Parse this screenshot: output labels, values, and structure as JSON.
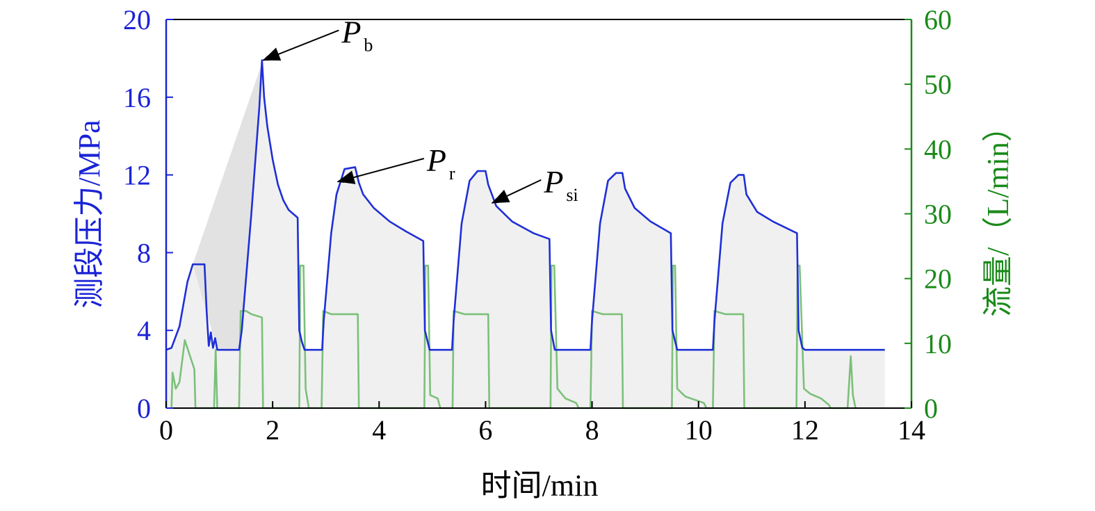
{
  "chart_data": {
    "type": "line",
    "xlabel": "时间/min",
    "ylabel_left": "测段压力/MPa",
    "ylabel_right": "流量/（L/min）",
    "xlim": [
      0,
      14
    ],
    "ylim_left": [
      0,
      20
    ],
    "ylim_right": [
      0,
      60
    ],
    "xticks": [
      "0",
      "2",
      "4",
      "6",
      "8",
      "10",
      "12",
      "14"
    ],
    "yticks_left": [
      "0",
      "4",
      "8",
      "12",
      "16",
      "20"
    ],
    "yticks_right": [
      "0",
      "10",
      "20",
      "30",
      "40",
      "50",
      "60"
    ],
    "colors": {
      "pressure": "#1f2fd6",
      "flow": "#7cc07a",
      "fill": "#f0f0f0",
      "left_axis": "#1a23d6",
      "right_axis": "#1a8a1a",
      "axis": "#000000"
    },
    "series": [
      {
        "name": "测段压力",
        "axis": "left",
        "points": [
          [
            0,
            3.0
          ],
          [
            0.1,
            3.1
          ],
          [
            0.25,
            4.2
          ],
          [
            0.4,
            6.5
          ],
          [
            0.5,
            7.4
          ],
          [
            0.72,
            7.4
          ],
          [
            0.76,
            5.0
          ],
          [
            0.8,
            3.2
          ],
          [
            0.84,
            3.9
          ],
          [
            0.88,
            3.1
          ],
          [
            0.92,
            3.6
          ],
          [
            0.96,
            3.0
          ],
          [
            1.37,
            3.0
          ],
          [
            1.42,
            4.0
          ],
          [
            1.6,
            10.0
          ],
          [
            1.75,
            15.5
          ],
          [
            1.8,
            17.9
          ],
          [
            1.84,
            16.0
          ],
          [
            1.9,
            14.5
          ],
          [
            2.0,
            12.8
          ],
          [
            2.1,
            11.5
          ],
          [
            2.2,
            10.7
          ],
          [
            2.3,
            10.2
          ],
          [
            2.47,
            9.8
          ],
          [
            2.5,
            4.0
          ],
          [
            2.55,
            3.4
          ],
          [
            2.6,
            3.0
          ],
          [
            2.93,
            3.0
          ],
          [
            2.96,
            4.5
          ],
          [
            3.1,
            9.0
          ],
          [
            3.2,
            11.0
          ],
          [
            3.35,
            12.3
          ],
          [
            3.55,
            12.4
          ],
          [
            3.62,
            11.6
          ],
          [
            3.7,
            11.0
          ],
          [
            3.9,
            10.3
          ],
          [
            4.2,
            9.6
          ],
          [
            4.5,
            9.1
          ],
          [
            4.83,
            8.6
          ],
          [
            4.86,
            4.0
          ],
          [
            4.95,
            3.0
          ],
          [
            5.37,
            3.0
          ],
          [
            5.4,
            4.5
          ],
          [
            5.55,
            9.5
          ],
          [
            5.7,
            11.7
          ],
          [
            5.85,
            12.2
          ],
          [
            6.0,
            12.2
          ],
          [
            6.05,
            11.5
          ],
          [
            6.2,
            10.4
          ],
          [
            6.5,
            9.6
          ],
          [
            6.9,
            9.0
          ],
          [
            7.2,
            8.7
          ],
          [
            7.23,
            4.0
          ],
          [
            7.3,
            3.0
          ],
          [
            7.97,
            3.0
          ],
          [
            8.0,
            4.5
          ],
          [
            8.15,
            9.5
          ],
          [
            8.3,
            11.7
          ],
          [
            8.45,
            12.1
          ],
          [
            8.57,
            12.1
          ],
          [
            8.62,
            11.3
          ],
          [
            8.8,
            10.3
          ],
          [
            9.1,
            9.6
          ],
          [
            9.48,
            9.0
          ],
          [
            9.51,
            4.0
          ],
          [
            9.6,
            3.0
          ],
          [
            10.27,
            3.0
          ],
          [
            10.3,
            4.5
          ],
          [
            10.45,
            9.5
          ],
          [
            10.6,
            11.6
          ],
          [
            10.75,
            12.0
          ],
          [
            10.85,
            12.0
          ],
          [
            10.9,
            11.0
          ],
          [
            11.1,
            10.1
          ],
          [
            11.4,
            9.6
          ],
          [
            11.85,
            9.0
          ],
          [
            11.88,
            4.0
          ],
          [
            11.95,
            3.1
          ],
          [
            12.0,
            3.0
          ],
          [
            13.5,
            3.0
          ]
        ]
      },
      {
        "name": "流量",
        "axis": "right",
        "points": [
          [
            0.1,
            0
          ],
          [
            0.12,
            5.5
          ],
          [
            0.18,
            3
          ],
          [
            0.25,
            4
          ],
          [
            0.35,
            10.5
          ],
          [
            0.45,
            8
          ],
          [
            0.53,
            6
          ],
          [
            0.55,
            0
          ],
          [
            0.9,
            0
          ],
          [
            0.93,
            9
          ],
          [
            0.96,
            0
          ],
          [
            1.37,
            0
          ],
          [
            1.4,
            15
          ],
          [
            1.5,
            15
          ],
          [
            1.6,
            14.5
          ],
          [
            1.8,
            14
          ],
          [
            1.82,
            0
          ],
          [
            2.5,
            0
          ],
          [
            2.52,
            22
          ],
          [
            2.58,
            22
          ],
          [
            2.62,
            3
          ],
          [
            2.68,
            0
          ],
          [
            2.92,
            0
          ],
          [
            2.95,
            15
          ],
          [
            3.1,
            14.5
          ],
          [
            3.6,
            14.5
          ],
          [
            3.62,
            0
          ],
          [
            4.85,
            0
          ],
          [
            4.87,
            22
          ],
          [
            4.92,
            22
          ],
          [
            4.96,
            2
          ],
          [
            5.1,
            1.5
          ],
          [
            5.15,
            0
          ],
          [
            5.38,
            0
          ],
          [
            5.4,
            15
          ],
          [
            5.6,
            14.5
          ],
          [
            6.05,
            14.5
          ],
          [
            6.07,
            0
          ],
          [
            7.22,
            0
          ],
          [
            7.24,
            22
          ],
          [
            7.29,
            22
          ],
          [
            7.35,
            3
          ],
          [
            7.5,
            1.5
          ],
          [
            7.7,
            0.8
          ],
          [
            7.75,
            0
          ],
          [
            7.97,
            0
          ],
          [
            8.0,
            15
          ],
          [
            8.2,
            14.5
          ],
          [
            8.56,
            14.5
          ],
          [
            8.58,
            0
          ],
          [
            9.5,
            0
          ],
          [
            9.52,
            22
          ],
          [
            9.56,
            22
          ],
          [
            9.6,
            3
          ],
          [
            9.75,
            1.8
          ],
          [
            10.1,
            0.8
          ],
          [
            10.15,
            0
          ],
          [
            10.27,
            0
          ],
          [
            10.3,
            15
          ],
          [
            10.5,
            14.5
          ],
          [
            10.84,
            14.5
          ],
          [
            10.86,
            0
          ],
          [
            11.84,
            0
          ],
          [
            11.86,
            22
          ],
          [
            11.9,
            22
          ],
          [
            11.98,
            3
          ],
          [
            12.1,
            2.2
          ],
          [
            12.3,
            1.5
          ],
          [
            12.45,
            0.5
          ],
          [
            12.48,
            0
          ],
          [
            12.8,
            0
          ],
          [
            12.86,
            8
          ],
          [
            12.9,
            2
          ],
          [
            12.95,
            0
          ]
        ]
      }
    ],
    "annotations": [
      {
        "label": "P",
        "sub": "b",
        "point": [
          1.82,
          17.9
        ],
        "text_at": [
          3.4,
          18.8
        ]
      },
      {
        "label": "P",
        "sub": "r",
        "point": [
          3.22,
          11.65
        ],
        "text_at": [
          5.0,
          12.2
        ]
      },
      {
        "label": "P",
        "sub": "si",
        "point": [
          6.12,
          10.55
        ],
        "text_at": [
          7.2,
          11.1
        ]
      }
    ]
  }
}
